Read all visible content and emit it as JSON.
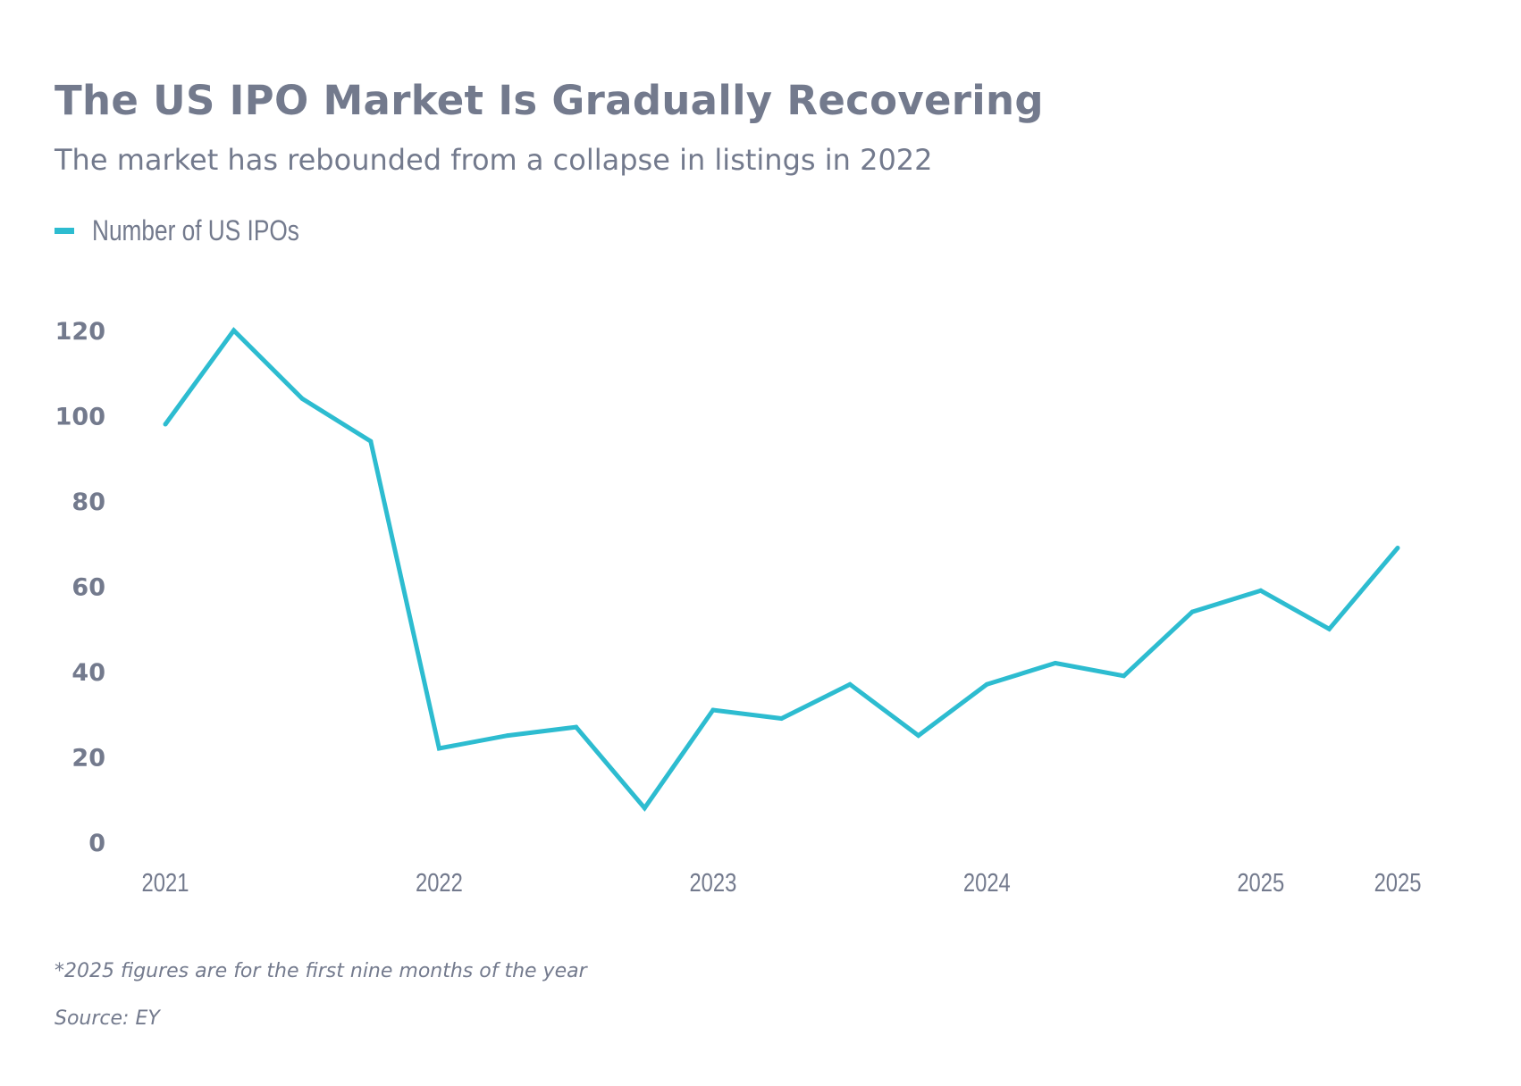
{
  "header": {
    "title": "The US IPO Market Is Gradually Recovering",
    "subtitle": "The market has rebounded from a collapse in listings in 2022"
  },
  "legend": {
    "label": "Number of US IPOs",
    "color": "#2dbcd0"
  },
  "footer": {
    "note": "*2025 figures are for the first nine months of the year",
    "source": "Source: EY"
  },
  "chart_data": {
    "type": "line",
    "title": "The US IPO Market Is Gradually Recovering",
    "subtitle": "The market has rebounded from a collapse in listings in 2022",
    "xlabel": "",
    "ylabel": "",
    "ylim": [
      0,
      120
    ],
    "y_ticks": [
      0,
      20,
      40,
      60,
      80,
      100,
      120
    ],
    "x_tick_labels": [
      "2021",
      "2022",
      "2023",
      "2024",
      "2025",
      "2025"
    ],
    "grid": false,
    "legend_position": "top-left",
    "series": [
      {
        "name": "Number of US IPOs",
        "color": "#2dbcd0",
        "values": [
          98,
          120,
          104,
          94,
          22,
          25,
          27,
          8,
          31,
          29,
          37,
          25,
          37,
          42,
          39,
          54,
          59,
          50,
          69
        ]
      }
    ]
  }
}
